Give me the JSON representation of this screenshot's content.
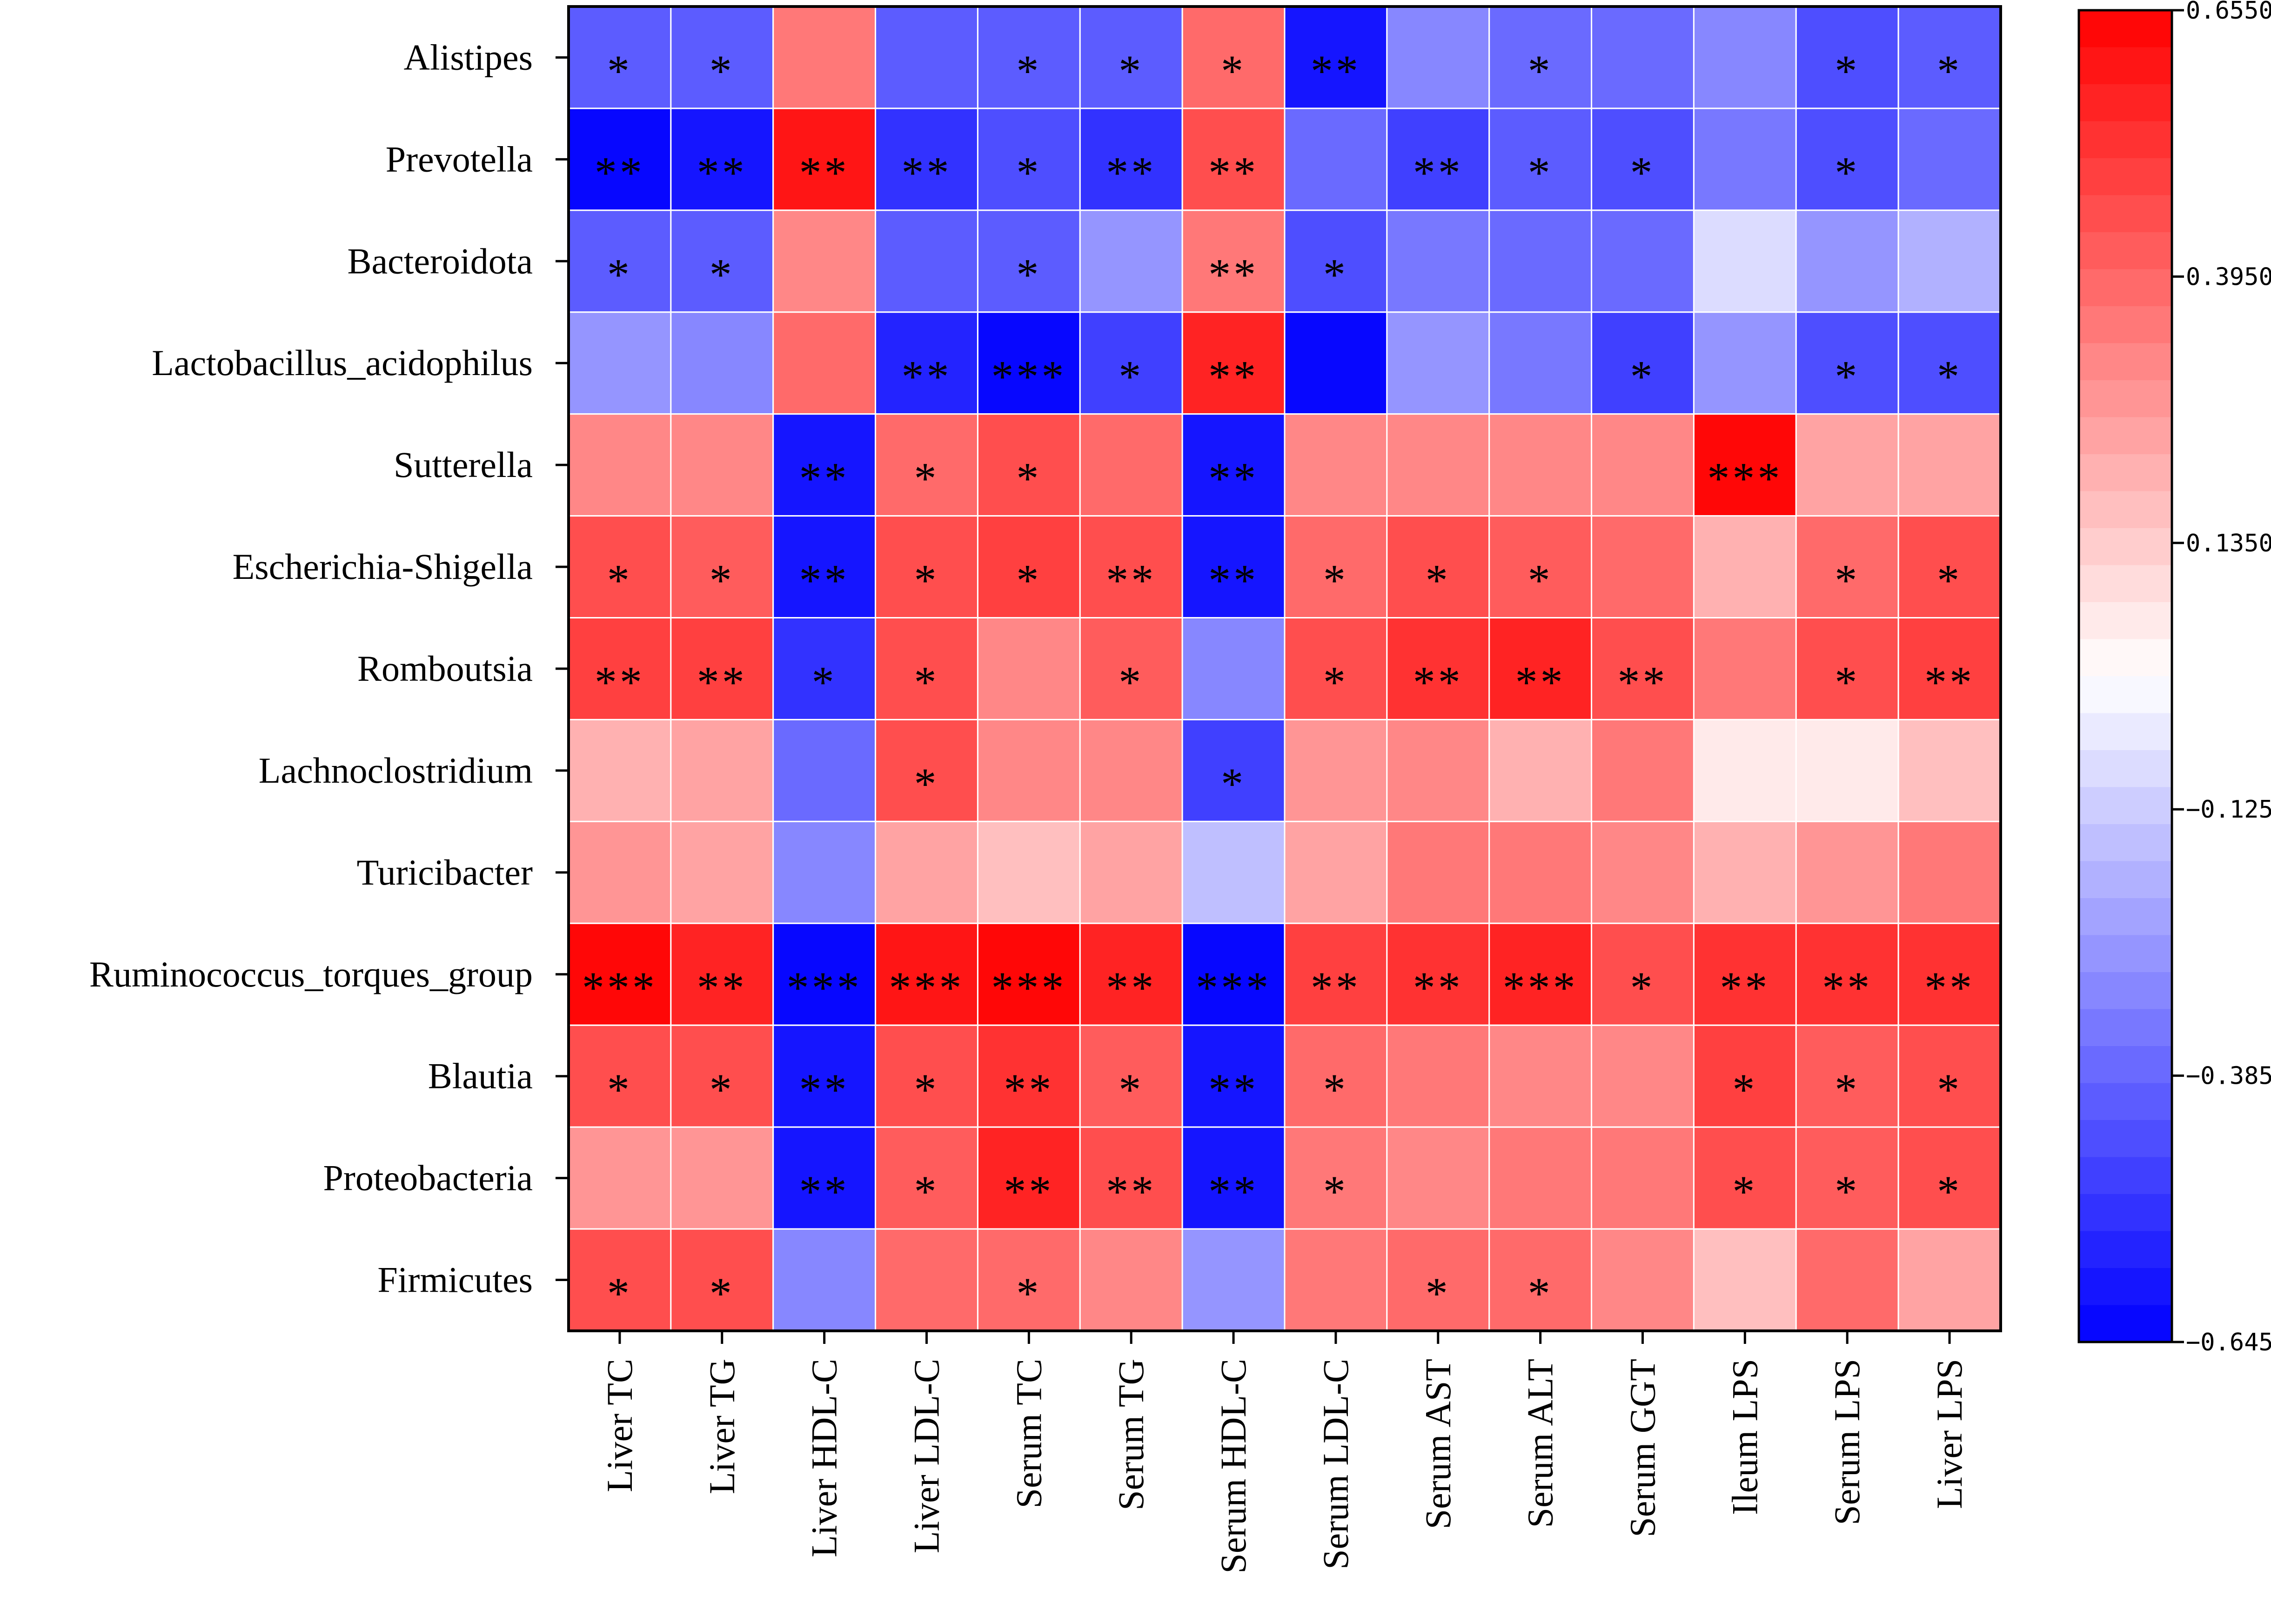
{
  "chart_data": {
    "type": "heatmap",
    "title": "",
    "rows": [
      "Alistipes",
      "Prevotella",
      "Bacteroidota",
      "Lactobacillus_acidophilus",
      "Sutterella",
      "Escherichia-Shigella",
      "Romboutsia",
      "Lachnoclostridium",
      "Turicibacter",
      "Ruminococcus_torques_group",
      "Blautia",
      "Proteobacteria",
      "Firmicutes"
    ],
    "columns": [
      "Liver TC",
      "Liver TG",
      "Liver HDL-C",
      "Liver LDL-C",
      "Serum TC",
      "Serum TG",
      "Serum HDL-C",
      "Serum LDL-C",
      "Serum AST",
      "Serum ALT",
      "Serum GGT",
      "Ileum LPS",
      "Serum LPS",
      "Liver LPS"
    ],
    "values": [
      [
        -0.42,
        -0.42,
        0.35,
        -0.4,
        -0.42,
        -0.4,
        0.4,
        -0.6,
        -0.32,
        -0.38,
        -0.38,
        -0.3,
        -0.45,
        -0.42
      ],
      [
        -0.62,
        -0.6,
        0.6,
        -0.52,
        -0.45,
        -0.53,
        0.45,
        -0.38,
        -0.48,
        -0.4,
        -0.45,
        -0.33,
        -0.45,
        -0.36
      ],
      [
        -0.42,
        -0.4,
        0.3,
        -0.4,
        -0.42,
        -0.28,
        0.33,
        -0.44,
        -0.33,
        -0.38,
        -0.36,
        -0.1,
        -0.28,
        -0.18
      ],
      [
        -0.25,
        -0.3,
        0.37,
        -0.55,
        -0.62,
        -0.47,
        0.55,
        -0.64,
        -0.27,
        -0.33,
        -0.47,
        -0.25,
        -0.44,
        -0.46
      ],
      [
        0.3,
        0.31,
        -0.6,
        0.4,
        0.45,
        0.37,
        -0.6,
        0.3,
        0.3,
        0.3,
        0.32,
        0.62,
        0.25,
        0.24
      ],
      [
        0.45,
        0.42,
        -0.6,
        0.45,
        0.48,
        0.45,
        -0.58,
        0.4,
        0.45,
        0.42,
        0.38,
        0.22,
        0.4,
        0.44
      ],
      [
        0.5,
        0.5,
        -0.52,
        0.45,
        0.32,
        0.42,
        -0.32,
        0.45,
        0.52,
        0.56,
        0.45,
        0.33,
        0.45,
        0.5
      ],
      [
        0.2,
        0.23,
        -0.38,
        0.45,
        0.31,
        0.32,
        -0.48,
        0.28,
        0.3,
        0.2,
        0.35,
        0.05,
        0.05,
        0.16
      ],
      [
        0.29,
        0.23,
        -0.3,
        0.23,
        0.16,
        0.24,
        -0.15,
        0.24,
        0.36,
        0.33,
        0.3,
        0.2,
        0.27,
        0.33
      ],
      [
        0.62,
        0.57,
        -0.62,
        0.6,
        0.63,
        0.55,
        -0.63,
        0.5,
        0.53,
        0.58,
        0.45,
        0.52,
        0.52,
        0.52
      ],
      [
        0.45,
        0.44,
        -0.6,
        0.45,
        0.52,
        0.42,
        -0.6,
        0.37,
        0.35,
        0.32,
        0.32,
        0.48,
        0.42,
        0.45
      ],
      [
        0.28,
        0.27,
        -0.6,
        0.42,
        0.55,
        0.45,
        -0.6,
        0.36,
        0.3,
        0.33,
        0.33,
        0.45,
        0.42,
        0.45
      ],
      [
        0.45,
        0.45,
        -0.32,
        0.37,
        0.38,
        0.3,
        -0.28,
        0.35,
        0.4,
        0.38,
        0.32,
        0.18,
        0.37,
        0.25
      ]
    ],
    "significance": [
      [
        "*",
        "*",
        "",
        "",
        "*",
        "*",
        "*",
        "**",
        "",
        "*",
        "",
        "",
        "*",
        "*"
      ],
      [
        "**",
        "**",
        "**",
        "**",
        "*",
        "**",
        "**",
        "",
        "**",
        "*",
        "*",
        "",
        "*",
        ""
      ],
      [
        "*",
        "*",
        "",
        "",
        "*",
        "",
        "**",
        "*",
        "",
        "",
        "",
        "",
        "",
        ""
      ],
      [
        "",
        "",
        "",
        "**",
        "***",
        "*",
        "**",
        "",
        "",
        "",
        "*",
        "",
        "*",
        "*"
      ],
      [
        "",
        "",
        "**",
        "*",
        "*",
        "",
        "**",
        "",
        "",
        "",
        "",
        "***",
        "",
        ""
      ],
      [
        "*",
        "*",
        "**",
        "*",
        "*",
        "**",
        "**",
        "*",
        "*",
        "*",
        "",
        "",
        "*",
        "*"
      ],
      [
        "**",
        "**",
        "*",
        "*",
        "",
        "*",
        "",
        "*",
        "**",
        "**",
        "**",
        "",
        "*",
        "**"
      ],
      [
        "",
        "",
        "",
        "*",
        "",
        "",
        "*",
        "",
        "",
        "",
        "",
        "",
        "",
        ""
      ],
      [
        "",
        "",
        "",
        "",
        "",
        "",
        "",
        "",
        "",
        "",
        "",
        "",
        "",
        ""
      ],
      [
        "***",
        "**",
        "***",
        "***",
        "***",
        "**",
        "***",
        "**",
        "**",
        "***",
        "*",
        "**",
        "**",
        "**"
      ],
      [
        "*",
        "*",
        "**",
        "*",
        "**",
        "*",
        "**",
        "*",
        "",
        "",
        "",
        "*",
        "*",
        "*"
      ],
      [
        "",
        "",
        "**",
        "*",
        "**",
        "**",
        "**",
        "*",
        "",
        "",
        "",
        "*",
        "*",
        "*"
      ],
      [
        "*",
        "*",
        "",
        "",
        "*",
        "",
        "",
        "",
        "*",
        "*",
        "",
        "",
        "",
        ""
      ]
    ],
    "colorbar": {
      "min": -0.645,
      "max": 0.655,
      "tick_labels": [
        "0.6550",
        "0.3950",
        "0.1350",
        "−0.1250",
        "−0.3850",
        "−0.6450"
      ],
      "tick_values": [
        0.655,
        0.395,
        0.135,
        -0.125,
        -0.385,
        -0.645
      ],
      "levels": 36
    },
    "colors": {
      "low": "#0000ff",
      "mid": "#ffffff",
      "high": "#ff0000"
    }
  }
}
